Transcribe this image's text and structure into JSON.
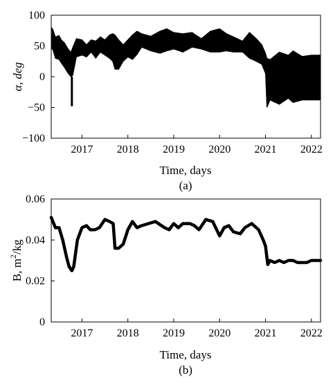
{
  "chart_data": [
    {
      "type": "area",
      "panel_label": "(a)",
      "xlabel": "Time, days",
      "ylabel": "α, deg",
      "xlim": [
        2016.33,
        2022.2
      ],
      "ylim": [
        -100,
        100
      ],
      "xticks": [
        {
          "v": 2017,
          "label": "2017"
        },
        {
          "v": 2018,
          "label": "2018"
        },
        {
          "v": 2019,
          "label": "2019"
        },
        {
          "v": 2020,
          "label": "2020"
        },
        {
          "v": 2021,
          "label": "2021"
        },
        {
          "v": 2022,
          "label": "2022"
        }
      ],
      "yticks": [
        {
          "v": -100,
          "label": "−100"
        },
        {
          "v": -50,
          "label": "−50"
        },
        {
          "v": 0,
          "label": "0"
        },
        {
          "v": 50,
          "label": "50"
        },
        {
          "v": 100,
          "label": "100"
        }
      ],
      "series": [
        {
          "color": "#000000",
          "x": [
            2016.33,
            2016.36,
            2016.42,
            2016.5,
            2016.55,
            2016.62,
            2016.7,
            2016.76,
            2016.8,
            2016.88,
            2017.0,
            2017.1,
            2017.2,
            2017.3,
            2017.4,
            2017.5,
            2017.6,
            2017.67,
            2017.72,
            2017.8,
            2017.9,
            2018.0,
            2018.1,
            2018.2,
            2018.3,
            2018.5,
            2018.7,
            2018.85,
            2019.0,
            2019.2,
            2019.4,
            2019.6,
            2019.8,
            2020.0,
            2020.15,
            2020.3,
            2020.5,
            2020.65,
            2020.8,
            2020.92,
            2021.0,
            2021.03,
            2021.1,
            2021.3,
            2021.5,
            2021.6,
            2021.8,
            2022.0,
            2022.2
          ],
          "upper": [
            80,
            78,
            65,
            67,
            60,
            55,
            45,
            40,
            48,
            62,
            60,
            52,
            60,
            58,
            65,
            60,
            68,
            70,
            68,
            60,
            52,
            60,
            68,
            74,
            70,
            66,
            74,
            78,
            72,
            70,
            72,
            62,
            74,
            78,
            70,
            65,
            58,
            72,
            62,
            52,
            38,
            30,
            28,
            40,
            35,
            42,
            33,
            35,
            35
          ],
          "lower": [
            45,
            45,
            30,
            28,
            22,
            15,
            5,
            0,
            2,
            32,
            35,
            32,
            40,
            30,
            40,
            35,
            30,
            25,
            12,
            12,
            25,
            32,
            28,
            36,
            48,
            42,
            38,
            42,
            45,
            40,
            48,
            45,
            40,
            40,
            42,
            40,
            40,
            30,
            25,
            20,
            5,
            -50,
            -38,
            -45,
            -35,
            -42,
            -38,
            -38,
            -38
          ]
        }
      ],
      "spike": {
        "x": 2016.78,
        "y0": 0,
        "y1": -48
      }
    },
    {
      "type": "line",
      "panel_label": "(b)",
      "xlabel": "Time, days",
      "ylabel_main": "B, m",
      "ylabel_sup": "2",
      "ylabel_tail": "/kg",
      "xlim": [
        2016.33,
        2022.2
      ],
      "ylim": [
        0,
        0.06
      ],
      "xticks": [
        {
          "v": 2017,
          "label": "2017"
        },
        {
          "v": 2018,
          "label": "2018"
        },
        {
          "v": 2019,
          "label": "2019"
        },
        {
          "v": 2020,
          "label": "2020"
        },
        {
          "v": 2021,
          "label": "2021"
        },
        {
          "v": 2022,
          "label": "2022"
        }
      ],
      "yticks": [
        {
          "v": 0,
          "label": "0"
        },
        {
          "v": 0.02,
          "label": "0.02"
        },
        {
          "v": 0.04,
          "label": "0.04"
        },
        {
          "v": 0.06,
          "label": "0.06"
        }
      ],
      "series": [
        {
          "color": "#000000",
          "x": [
            2016.33,
            2016.42,
            2016.5,
            2016.58,
            2016.66,
            2016.72,
            2016.78,
            2016.82,
            2016.9,
            2017.0,
            2017.1,
            2017.18,
            2017.28,
            2017.38,
            2017.5,
            2017.6,
            2017.68,
            2017.72,
            2017.8,
            2017.9,
            2018.0,
            2018.1,
            2018.2,
            2018.3,
            2018.45,
            2018.6,
            2018.8,
            2018.9,
            2019.0,
            2019.1,
            2019.2,
            2019.35,
            2019.45,
            2019.55,
            2019.7,
            2019.85,
            2020.0,
            2020.1,
            2020.2,
            2020.3,
            2020.45,
            2020.55,
            2020.7,
            2020.85,
            2020.95,
            2021.0,
            2021.05,
            2021.1,
            2021.2,
            2021.3,
            2021.4,
            2021.5,
            2021.6,
            2021.7,
            2021.8,
            2021.9,
            2022.0,
            2022.1,
            2022.2
          ],
          "values": [
            0.051,
            0.046,
            0.046,
            0.04,
            0.032,
            0.027,
            0.025,
            0.027,
            0.04,
            0.046,
            0.047,
            0.045,
            0.045,
            0.046,
            0.05,
            0.049,
            0.048,
            0.036,
            0.036,
            0.038,
            0.045,
            0.049,
            0.046,
            0.047,
            0.048,
            0.049,
            0.046,
            0.045,
            0.048,
            0.046,
            0.048,
            0.048,
            0.047,
            0.045,
            0.05,
            0.049,
            0.042,
            0.046,
            0.047,
            0.044,
            0.043,
            0.046,
            0.048,
            0.045,
            0.04,
            0.037,
            0.028,
            0.03,
            0.029,
            0.03,
            0.029,
            0.03,
            0.03,
            0.029,
            0.029,
            0.029,
            0.03,
            0.03,
            0.03
          ]
        }
      ]
    }
  ]
}
